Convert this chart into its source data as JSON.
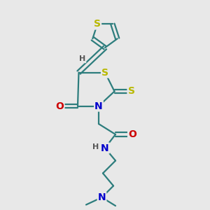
{
  "background_color": "#e8e8e8",
  "bond_color": "#2d7d7d",
  "thiophene_S_color": "#b8b800",
  "N_color": "#0000cc",
  "O_color": "#cc0000",
  "thiazolidine_S_color": "#b8b800",
  "line_width": 1.6,
  "font_size_atoms": 9,
  "fig_width": 3.0,
  "fig_height": 3.0,
  "dpi": 100,
  "xlim": [
    0,
    10
  ],
  "ylim": [
    0,
    10
  ]
}
